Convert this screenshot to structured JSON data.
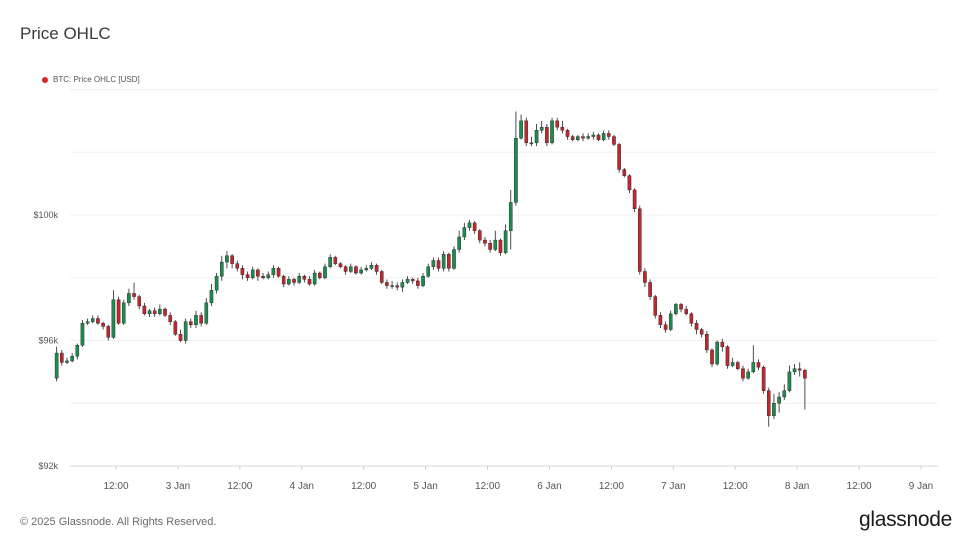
{
  "header": {
    "title": "Price OHLC"
  },
  "legend": {
    "label": "BTC: Price OHLC [USD]",
    "color": "#d7262b"
  },
  "footer": {
    "copyright": "© 2025 Glassnode. All Rights Reserved.",
    "brand": "glassnode"
  },
  "colors": {
    "up": "#1e8a4e",
    "down": "#c0282d",
    "grid": "#f0f0f0",
    "axis_text": "#555555"
  },
  "chart_data": {
    "type": "candlestick",
    "title": "Price OHLC",
    "series_name": "BTC: Price OHLC [USD]",
    "y_axis": {
      "ticks": [
        92000,
        96000,
        100000
      ],
      "tick_labels": [
        "$92k",
        "$96k",
        "$100k"
      ],
      "range": [
        92000,
        104000
      ]
    },
    "x_axis": {
      "tick_labels": [
        "12:00",
        "3 Jan",
        "12:00",
        "4 Jan",
        "12:00",
        "5 Jan",
        "12:00",
        "6 Jan",
        "12:00",
        "7 Jan",
        "12:00",
        "8 Jan",
        "12:00",
        "9 Jan"
      ],
      "tick_hours": [
        12,
        24,
        36,
        48,
        60,
        72,
        84,
        96,
        108,
        120,
        132,
        144,
        156,
        168
      ]
    },
    "grid": true,
    "candle_interval": "1h",
    "start_hour": 0,
    "ohlc": [
      [
        94800,
        95600,
        95800,
        94700
      ],
      [
        95600,
        95300,
        95700,
        95200
      ],
      [
        95300,
        95350,
        95450,
        95250
      ],
      [
        95350,
        95500,
        95600,
        95300
      ],
      [
        95500,
        95850,
        95900,
        95400
      ],
      [
        95850,
        96550,
        96650,
        95800
      ],
      [
        96550,
        96600,
        96700,
        96500
      ],
      [
        96600,
        96700,
        96800,
        96550
      ],
      [
        96700,
        96550,
        96800,
        96500
      ],
      [
        96550,
        96450,
        96600,
        96350
      ],
      [
        96450,
        96100,
        96500,
        96000
      ],
      [
        96100,
        97300,
        97600,
        96050
      ],
      [
        97300,
        96550,
        97400,
        96500
      ],
      [
        96550,
        97200,
        97300,
        96500
      ],
      [
        97200,
        97500,
        97650,
        97100
      ],
      [
        97500,
        97400,
        97850,
        97300
      ],
      [
        97400,
        97100,
        97450,
        97000
      ],
      [
        97100,
        96850,
        97200,
        96800
      ],
      [
        96850,
        96950,
        97000,
        96750
      ],
      [
        96950,
        96850,
        97050,
        96750
      ],
      [
        96850,
        97000,
        97150,
        96800
      ],
      [
        97000,
        96800,
        97050,
        96750
      ],
      [
        96800,
        96600,
        96900,
        96500
      ],
      [
        96600,
        96200,
        96650,
        96150
      ],
      [
        96200,
        96000,
        96350,
        95950
      ],
      [
        96000,
        96600,
        96700,
        95900
      ],
      [
        96600,
        96500,
        96700,
        96400
      ],
      [
        96500,
        96800,
        96950,
        96400
      ],
      [
        96800,
        96550,
        96900,
        96450
      ],
      [
        96550,
        97200,
        97350,
        96500
      ],
      [
        97200,
        97600,
        97800,
        97100
      ],
      [
        97600,
        98050,
        98150,
        97500
      ],
      [
        98050,
        98500,
        98700,
        97900
      ],
      [
        98500,
        98700,
        98850,
        98300
      ],
      [
        98700,
        98450,
        98750,
        98300
      ],
      [
        98450,
        98300,
        98550,
        98200
      ],
      [
        98300,
        98100,
        98400,
        97950
      ],
      [
        98100,
        98000,
        98200,
        97900
      ],
      [
        98000,
        98250,
        98350,
        97950
      ],
      [
        98250,
        98050,
        98300,
        97900
      ],
      [
        98050,
        98000,
        98150,
        97950
      ],
      [
        98000,
        98100,
        98200,
        97950
      ],
      [
        98100,
        98300,
        98400,
        98000
      ],
      [
        98300,
        98050,
        98350,
        98000
      ],
      [
        98050,
        97800,
        98100,
        97700
      ],
      [
        97800,
        97950,
        98050,
        97750
      ],
      [
        97950,
        97850,
        98000,
        97750
      ],
      [
        97850,
        98050,
        98150,
        97800
      ],
      [
        98050,
        97950,
        98100,
        97850
      ],
      [
        97950,
        97800,
        98050,
        97750
      ],
      [
        97800,
        98150,
        98250,
        97750
      ],
      [
        98150,
        98000,
        98200,
        97950
      ],
      [
        98000,
        98350,
        98450,
        97950
      ],
      [
        98350,
        98650,
        98750,
        98300
      ],
      [
        98650,
        98450,
        98700,
        98400
      ],
      [
        98450,
        98350,
        98500,
        98300
      ],
      [
        98350,
        98200,
        98400,
        98100
      ],
      [
        98200,
        98350,
        98450,
        98150
      ],
      [
        98350,
        98150,
        98400,
        98100
      ],
      [
        98150,
        98250,
        98350,
        98100
      ],
      [
        98250,
        98300,
        98400,
        98200
      ],
      [
        98300,
        98400,
        98500,
        98250
      ],
      [
        98400,
        98200,
        98450,
        98100
      ],
      [
        98200,
        97850,
        98250,
        97800
      ],
      [
        97850,
        97750,
        97950,
        97650
      ],
      [
        97750,
        97750,
        97900,
        97650
      ],
      [
        97750,
        97700,
        97850,
        97600
      ],
      [
        97700,
        97850,
        97950,
        97550
      ],
      [
        97850,
        97950,
        98050,
        97800
      ],
      [
        97950,
        97900,
        98000,
        97800
      ],
      [
        97900,
        97750,
        98000,
        97650
      ],
      [
        97750,
        98050,
        98150,
        97700
      ],
      [
        98050,
        98350,
        98450,
        98000
      ],
      [
        98350,
        98550,
        98650,
        98250
      ],
      [
        98550,
        98300,
        98650,
        98200
      ],
      [
        98300,
        98750,
        98850,
        98200
      ],
      [
        98750,
        98300,
        98800,
        98200
      ],
      [
        98300,
        98900,
        99000,
        98250
      ],
      [
        98900,
        99300,
        99500,
        98800
      ],
      [
        99300,
        99600,
        99750,
        99200
      ],
      [
        99600,
        99750,
        99850,
        99500
      ],
      [
        99750,
        99500,
        99800,
        99400
      ],
      [
        99500,
        99200,
        99550,
        99100
      ],
      [
        99200,
        99100,
        99300,
        99000
      ],
      [
        99100,
        98900,
        99200,
        98800
      ],
      [
        98900,
        99200,
        99500,
        98850
      ],
      [
        99200,
        98800,
        99250,
        98700
      ],
      [
        98800,
        99500,
        99700,
        98750
      ],
      [
        99500,
        100400,
        100800,
        98900
      ],
      [
        100400,
        102450,
        103300,
        100300
      ],
      [
        102450,
        103000,
        103200,
        102400
      ],
      [
        103000,
        102300,
        103100,
        102200
      ],
      [
        102300,
        102300,
        102500,
        102200
      ],
      [
        102300,
        102700,
        102900,
        102200
      ],
      [
        102700,
        102800,
        103000,
        102600
      ],
      [
        102800,
        102300,
        102900,
        102200
      ],
      [
        102300,
        103000,
        103100,
        102250
      ],
      [
        103000,
        102800,
        103100,
        102700
      ],
      [
        102800,
        102700,
        103000,
        102600
      ],
      [
        102700,
        102500,
        102750,
        102400
      ],
      [
        102500,
        102400,
        102550,
        102350
      ],
      [
        102400,
        102500,
        102550,
        102350
      ],
      [
        102500,
        102450,
        102600,
        102350
      ],
      [
        102450,
        102500,
        102600,
        102400
      ],
      [
        102500,
        102550,
        102650,
        102400
      ],
      [
        102550,
        102400,
        102600,
        102350
      ],
      [
        102400,
        102600,
        102700,
        102350
      ],
      [
        102600,
        102500,
        102700,
        102400
      ],
      [
        102500,
        102250,
        102550,
        102200
      ],
      [
        102250,
        101450,
        102300,
        101350
      ],
      [
        101450,
        101250,
        101500,
        101200
      ],
      [
        101250,
        100800,
        101300,
        100700
      ],
      [
        100800,
        100200,
        100850,
        100100
      ],
      [
        100200,
        98200,
        100300,
        98100
      ],
      [
        98200,
        97850,
        98300,
        97700
      ],
      [
        97850,
        97400,
        97950,
        97300
      ],
      [
        97400,
        96800,
        97450,
        96700
      ],
      [
        96800,
        96500,
        96900,
        96400
      ],
      [
        96500,
        96350,
        96600,
        96250
      ],
      [
        96350,
        96850,
        96950,
        96300
      ],
      [
        96850,
        97150,
        97200,
        96800
      ],
      [
        97150,
        97000,
        97200,
        96900
      ],
      [
        97000,
        96850,
        97100,
        96800
      ],
      [
        96850,
        96550,
        96900,
        96450
      ],
      [
        96550,
        96350,
        96650,
        96200
      ],
      [
        96350,
        96200,
        96400,
        96100
      ],
      [
        96200,
        95700,
        96300,
        95600
      ],
      [
        95700,
        95250,
        95750,
        95150
      ],
      [
        95250,
        95950,
        96000,
        95200
      ],
      [
        95950,
        95800,
        96050,
        95650
      ],
      [
        95800,
        95200,
        95850,
        95100
      ],
      [
        95200,
        95300,
        95450,
        95150
      ],
      [
        95300,
        95100,
        95350,
        95050
      ],
      [
        95100,
        94800,
        95200,
        94700
      ],
      [
        94800,
        95000,
        95100,
        94750
      ],
      [
        95000,
        95300,
        95850,
        94950
      ],
      [
        95300,
        95150,
        95400,
        95050
      ],
      [
        95150,
        94400,
        95200,
        94300
      ],
      [
        94400,
        93600,
        94500,
        93250
      ],
      [
        93600,
        94000,
        94300,
        93500
      ],
      [
        94000,
        94200,
        94350,
        93700
      ],
      [
        94200,
        94400,
        94600,
        94100
      ],
      [
        94400,
        95000,
        95200,
        94350
      ],
      [
        95000,
        95100,
        95250,
        94900
      ],
      [
        95100,
        95050,
        95300,
        94850
      ],
      [
        95050,
        94800,
        95100,
        93800
      ]
    ]
  }
}
